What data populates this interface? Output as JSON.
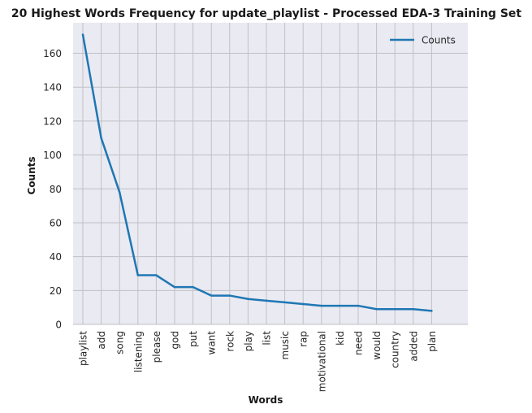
{
  "chart_data": {
    "type": "line",
    "title": "20 Highest Words Frequency for update_playlist - Processed EDA-3 Training Set",
    "xlabel": "Words",
    "ylabel": "Counts",
    "categories": [
      "playlist",
      "add",
      "song",
      "listening",
      "please",
      "god",
      "put",
      "want",
      "rock",
      "play",
      "list",
      "music",
      "rap",
      "motivational",
      "kid",
      "need",
      "would",
      "country",
      "added",
      "plan"
    ],
    "series": [
      {
        "name": "Counts",
        "values": [
          171,
          110,
          78,
          29,
          29,
          22,
          22,
          17,
          17,
          15,
          14,
          13,
          12,
          11,
          11,
          11,
          9,
          9,
          9,
          8
        ]
      }
    ],
    "ylim": [
      0,
      178
    ],
    "yticks": [
      0,
      20,
      40,
      60,
      80,
      100,
      120,
      140,
      160
    ],
    "grid": true,
    "legend": "top-right",
    "colors": {
      "line": "#1f77b4",
      "background": "#eaeaf2",
      "grid": "#c0c0c4"
    }
  }
}
